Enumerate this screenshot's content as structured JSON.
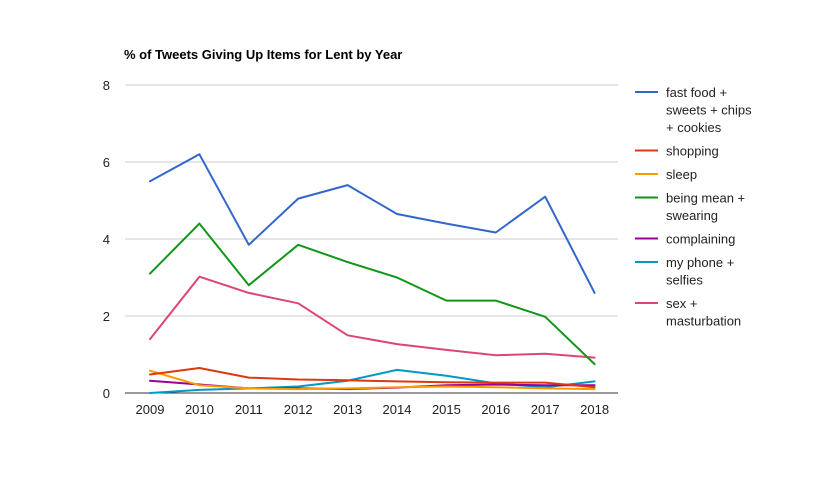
{
  "chart_data": {
    "type": "line",
    "title": "% of Tweets Giving Up Items for Lent by Year",
    "xlabel": "",
    "ylabel": "",
    "categories": [
      "2009",
      "2010",
      "2011",
      "2012",
      "2013",
      "2014",
      "2015",
      "2016",
      "2017",
      "2018"
    ],
    "ylim": [
      0,
      8
    ],
    "yticks": [
      "0",
      "2",
      "4",
      "6",
      "8"
    ],
    "grid": true,
    "legend_position": "right",
    "series": [
      {
        "name": [
          "fast food +",
          "sweets + chips",
          "+ cookies"
        ],
        "color": "#3366cc",
        "values": [
          5.5,
          6.2,
          3.85,
          5.05,
          5.4,
          4.65,
          4.4,
          4.17,
          5.1,
          2.6
        ]
      },
      {
        "name": [
          "shopping"
        ],
        "color": "#dc3912",
        "values": [
          0.48,
          0.65,
          0.4,
          0.35,
          0.33,
          0.3,
          0.28,
          0.27,
          0.27,
          0.15
        ]
      },
      {
        "name": [
          "sleep"
        ],
        "color": "#ff9900",
        "values": [
          0.58,
          0.2,
          0.12,
          0.1,
          0.12,
          0.15,
          0.17,
          0.15,
          0.12,
          0.1
        ]
      },
      {
        "name": [
          "being mean +",
          "swearing"
        ],
        "color": "#109618",
        "values": [
          3.1,
          4.4,
          2.8,
          3.85,
          3.4,
          3.0,
          2.4,
          2.4,
          1.98,
          0.75
        ]
      },
      {
        "name": [
          "complaining"
        ],
        "color": "#990099",
        "values": [
          0.32,
          0.22,
          0.12,
          0.12,
          0.1,
          0.14,
          0.2,
          0.22,
          0.2,
          0.2
        ]
      },
      {
        "name": [
          "my phone +",
          "selfies"
        ],
        "color": "#0099c6",
        "values": [
          0.0,
          0.08,
          0.12,
          0.17,
          0.32,
          0.6,
          0.45,
          0.25,
          0.15,
          0.3
        ]
      },
      {
        "name": [
          "sex +",
          "masturbation"
        ],
        "color": "#dd4477",
        "values": [
          1.4,
          3.02,
          2.6,
          2.33,
          1.5,
          1.27,
          1.12,
          0.98,
          1.02,
          0.92
        ]
      }
    ]
  }
}
